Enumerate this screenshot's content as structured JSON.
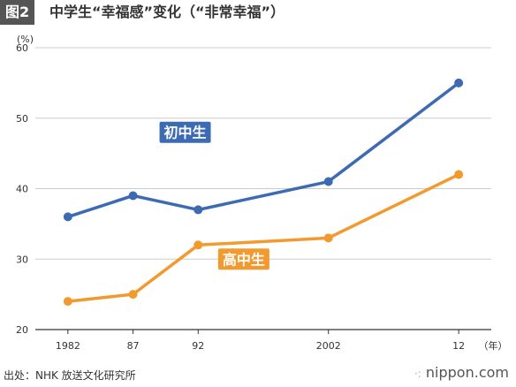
{
  "header": {
    "fig_label": "图2",
    "title": "中学生“幸福感”变化（“非常幸福”）"
  },
  "footer": {
    "source": "出处：NHK 放送文化研究所",
    "brand": "nippon.com",
    "brand_mark": "·:"
  },
  "chart_data": {
    "type": "line",
    "title": "中学生“幸福感”变化（“非常幸福”）",
    "y_unit": "(%)",
    "x_unit": "（年）",
    "x": [
      1982,
      1987,
      1992,
      2002,
      2012
    ],
    "x_tick_labels": [
      "1982",
      "87",
      "92",
      "2002",
      "12"
    ],
    "y_ticks": [
      20,
      30,
      40,
      50,
      60
    ],
    "ylim": [
      20,
      60
    ],
    "xlim": [
      1979.5,
      2014.5
    ],
    "grid": "horizontal",
    "series": [
      {
        "name": "初中生",
        "values": [
          36,
          39,
          37,
          41,
          55
        ],
        "color": "#3d6bb3",
        "label_at": [
          1991,
          48
        ]
      },
      {
        "name": "高中生",
        "values": [
          24,
          25,
          32,
          33,
          42
        ],
        "color": "#f39a2f",
        "label_at": [
          1995.5,
          30
        ]
      }
    ]
  }
}
